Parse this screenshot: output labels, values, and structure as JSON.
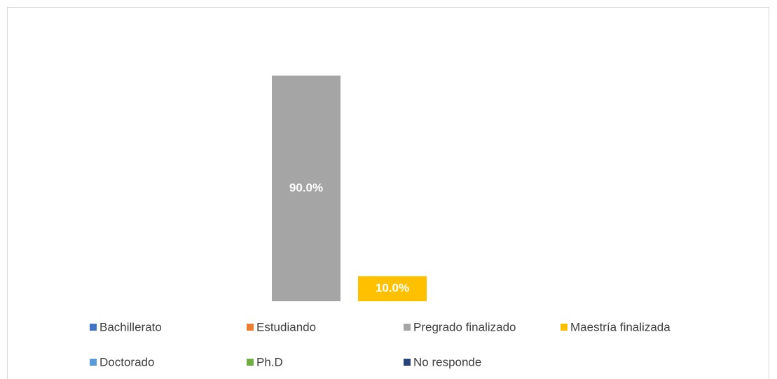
{
  "chart_data": {
    "type": "bar",
    "series": [
      {
        "name": "Bachillerato",
        "color": "#4472C4",
        "values": [
          0
        ]
      },
      {
        "name": "Estudiando",
        "color": "#ED7D31",
        "values": [
          0
        ]
      },
      {
        "name": "Pregrado finalizado",
        "color": "#A5A5A5",
        "values": [
          90
        ],
        "value_labels": [
          "90.0%"
        ]
      },
      {
        "name": "Maestría finalizada",
        "color": "#FFC000",
        "values": [
          10
        ],
        "value_labels": [
          "10.0%"
        ]
      },
      {
        "name": "Doctorado",
        "color": "#5B9BD5",
        "values": [
          0
        ]
      },
      {
        "name": "Ph.D",
        "color": "#70AD47",
        "values": [
          0
        ]
      },
      {
        "name": "No responde",
        "color": "#264478",
        "values": [
          0
        ]
      }
    ],
    "ylim": [
      0,
      100
    ],
    "legend": "bottom"
  }
}
